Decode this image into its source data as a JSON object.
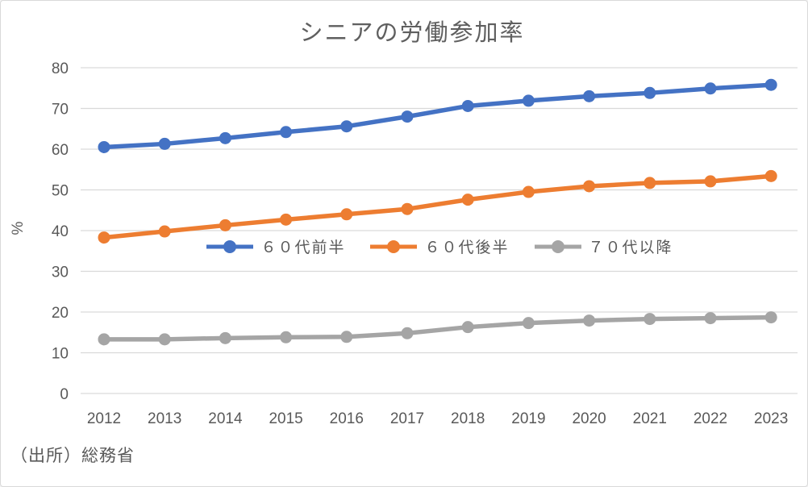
{
  "chart_data": {
    "type": "line",
    "title": "シニアの労働参加率",
    "ylabel": "%",
    "xlabel": "",
    "ylim": [
      0,
      80
    ],
    "yticks": [
      0,
      10,
      20,
      30,
      40,
      50,
      60,
      70,
      80
    ],
    "grid": true,
    "legend_position": "inside-plot-center",
    "marker": "circle",
    "categories": [
      "2012",
      "2013",
      "2014",
      "2015",
      "2016",
      "2017",
      "2018",
      "2019",
      "2020",
      "2021",
      "2022",
      "2023"
    ],
    "series": [
      {
        "name": "６０代前半",
        "color": "#4472C4",
        "values": [
          60.5,
          61.3,
          62.7,
          64.2,
          65.6,
          68.0,
          70.6,
          71.9,
          73.0,
          73.8,
          74.9,
          75.8
        ]
      },
      {
        "name": "６０代後半",
        "color": "#ED7D31",
        "values": [
          38.3,
          39.8,
          41.3,
          42.7,
          44.0,
          45.3,
          47.6,
          49.5,
          50.9,
          51.7,
          52.1,
          53.4
        ]
      },
      {
        "name": "７０代以降",
        "color": "#A5A5A5",
        "values": [
          13.3,
          13.3,
          13.6,
          13.8,
          13.9,
          14.8,
          16.3,
          17.3,
          17.9,
          18.3,
          18.5,
          18.7
        ]
      }
    ]
  },
  "source_note": "（出所）総務省",
  "colors": {
    "grid": "#D9D9D9",
    "axis_text": "#595959",
    "title_text": "#5F5F5F",
    "border": "#D9D9D9",
    "background": "#FFFFFF"
  }
}
